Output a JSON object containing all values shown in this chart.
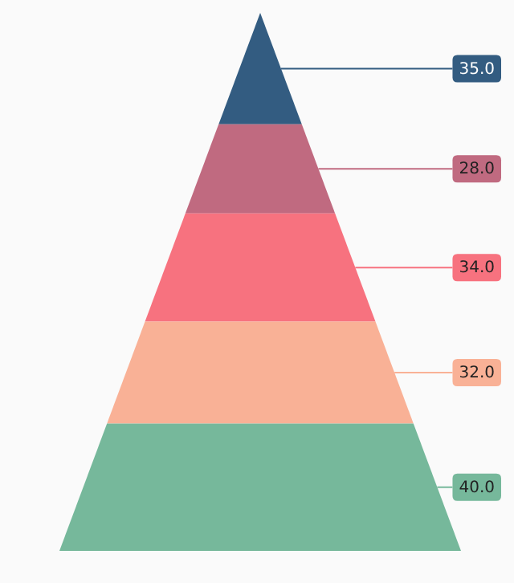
{
  "chart_data": {
    "type": "other",
    "categories": [
      null,
      null,
      null,
      null,
      null
    ],
    "values": [
      35,
      28,
      34,
      32,
      40
    ],
    "value_labels": [
      "35.0",
      "28.0",
      "34.0",
      "32.0",
      "40.0"
    ],
    "colors": [
      "#335c81",
      "#c06a80",
      "#f7727f",
      "#f9b196",
      "#76b89b"
    ]
  }
}
